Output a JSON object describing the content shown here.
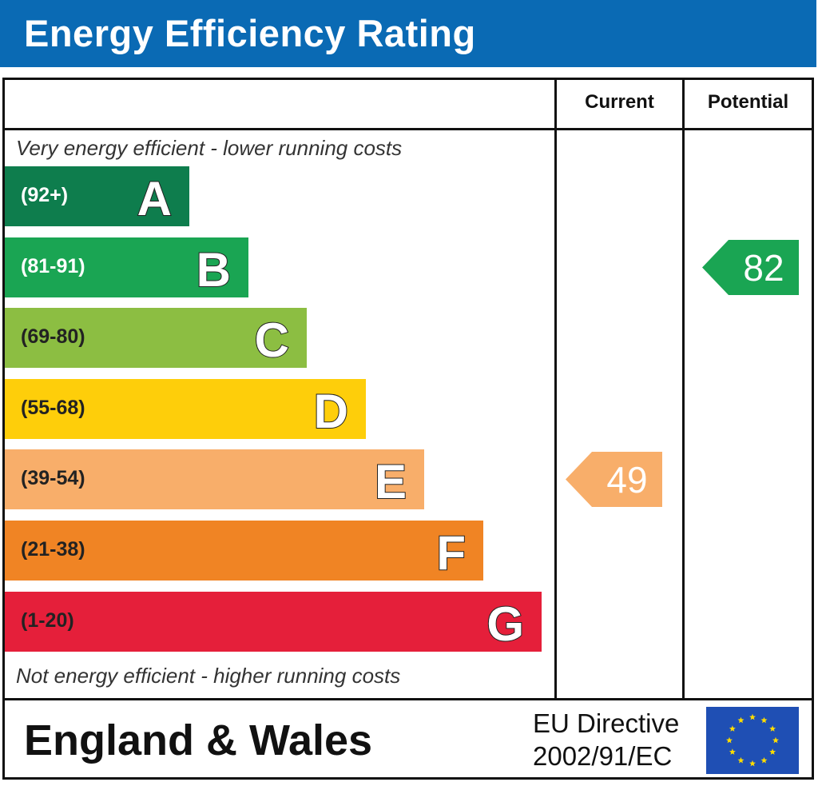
{
  "header": {
    "title": "Energy Efficiency Rating"
  },
  "columns": {
    "current": "Current",
    "potential": "Potential"
  },
  "captions": {
    "top": "Very energy efficient - lower running costs",
    "bottom": "Not energy efficient - higher running costs"
  },
  "chart_data": {
    "type": "bar",
    "categories": [
      "A",
      "B",
      "C",
      "D",
      "E",
      "F",
      "G"
    ],
    "ranges": [
      "(92+)",
      "(81-91)",
      "(69-80)",
      "(55-68)",
      "(39-54)",
      "(21-38)",
      "(1-20)"
    ],
    "colors": [
      "#0e7d4d",
      "#1aa553",
      "#8cbe42",
      "#fece0a",
      "#f8ae6a",
      "#f08424",
      "#e51f3a"
    ],
    "range_text_colors": [
      "#ffffff",
      "#ffffff",
      "#222222",
      "#222222",
      "#222222",
      "#222222",
      "#222222"
    ],
    "current": {
      "value": 49,
      "band": "E",
      "color": "#f8ae6a"
    },
    "potential": {
      "value": 82,
      "band": "B",
      "color": "#1aa553"
    }
  },
  "footer": {
    "region": "England & Wales",
    "directive_line1": "EU Directive",
    "directive_line2": "2002/91/EC"
  },
  "icons": {
    "flag": "eu-flag-icon"
  }
}
